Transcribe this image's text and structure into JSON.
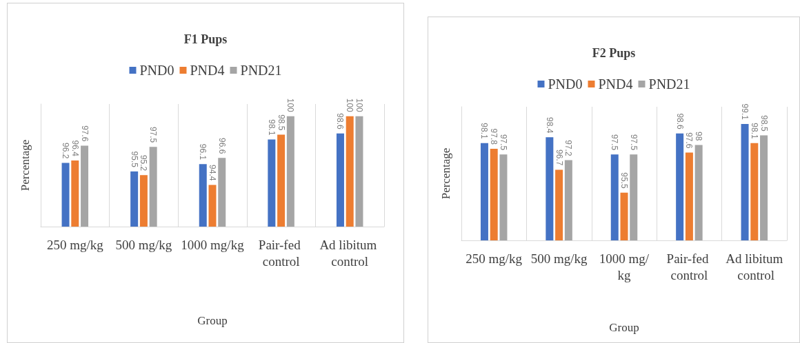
{
  "chart_data": [
    {
      "type": "bar",
      "title": "F1 Pups",
      "xlabel": "Group",
      "ylabel": "Percentage",
      "categories": [
        "250 mg/kg",
        "500 mg/kg",
        "1000 mg/kg",
        "Pair-fed control",
        "Ad libitum control"
      ],
      "series": [
        {
          "name": "PND0",
          "color": "#4472c4",
          "values": [
            96.2,
            95.5,
            96.1,
            98.1,
            98.6
          ]
        },
        {
          "name": "PND4",
          "color": "#ed7d31",
          "values": [
            96.4,
            95.2,
            94.4,
            98.5,
            100
          ]
        },
        {
          "name": "PND21",
          "color": "#a5a5a5",
          "values": [
            97.6,
            97.5,
            96.6,
            100,
            100
          ]
        }
      ],
      "ylim": [
        91,
        101
      ],
      "tick_labels": "x",
      "data_labels": true,
      "grid": "x",
      "legend": "top"
    },
    {
      "type": "bar",
      "title": "F2 Pups",
      "xlabel": "Group",
      "ylabel": "Percentage",
      "categories": [
        "250 mg/kg",
        "500 mg/kg",
        "1000 mg/kg",
        "Pair-fed control",
        "Ad libitum control"
      ],
      "series": [
        {
          "name": "PND0",
          "color": "#4472c4",
          "values": [
            98.1,
            98.4,
            97.5,
            98.6,
            99.1
          ]
        },
        {
          "name": "PND4",
          "color": "#ed7d31",
          "values": [
            97.8,
            96.7,
            95.5,
            97.6,
            98.1
          ]
        },
        {
          "name": "PND21",
          "color": "#a5a5a5",
          "values": [
            97.5,
            97.2,
            97.5,
            98,
            98.5
          ]
        }
      ],
      "ylim": [
        93,
        100
      ],
      "tick_labels": "x",
      "data_labels": true,
      "grid": "x",
      "legend": "top"
    }
  ]
}
